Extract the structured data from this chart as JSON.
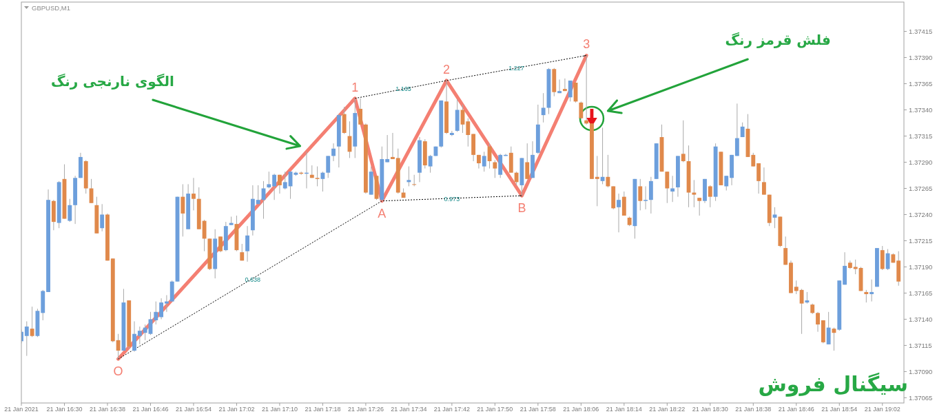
{
  "chart_data": {
    "type": "candlestick",
    "title": "GBPUSD,M1",
    "x": [
      "2021-01-21T16:22",
      "2021-01-21T16:23",
      "2021-01-21T16:24",
      "2021-01-21T16:25",
      "2021-01-21T16:26",
      "2021-01-21T16:27",
      "2021-01-21T16:28",
      "2021-01-21T16:29",
      "2021-01-21T16:30",
      "2021-01-21T16:31",
      "2021-01-21T16:32",
      "2021-01-21T16:33",
      "2021-01-21T16:34",
      "2021-01-21T16:35",
      "2021-01-21T16:36",
      "2021-01-21T16:37",
      "2021-01-21T16:38",
      "2021-01-21T16:39",
      "2021-01-21T16:40",
      "2021-01-21T16:41",
      "2021-01-21T16:42",
      "2021-01-21T16:43",
      "2021-01-21T16:44",
      "2021-01-21T16:45",
      "2021-01-21T16:46",
      "2021-01-21T16:47",
      "2021-01-21T16:48",
      "2021-01-21T16:49",
      "2021-01-21T16:50",
      "2021-01-21T16:51",
      "2021-01-21T16:52",
      "2021-01-21T16:53",
      "2021-01-21T16:54",
      "2021-01-21T16:55",
      "2021-01-21T16:56",
      "2021-01-21T16:57",
      "2021-01-21T16:58",
      "2021-01-21T16:59",
      "2021-01-21T17:00",
      "2021-01-21T17:01",
      "2021-01-21T17:02",
      "2021-01-21T17:03",
      "2021-01-21T17:04",
      "2021-01-21T17:05",
      "2021-01-21T17:06",
      "2021-01-21T17:07",
      "2021-01-21T17:08",
      "2021-01-21T17:09",
      "2021-01-21T17:10",
      "2021-01-21T17:11",
      "2021-01-21T17:12",
      "2021-01-21T17:13",
      "2021-01-21T17:14",
      "2021-01-21T17:15",
      "2021-01-21T17:16",
      "2021-01-21T17:17",
      "2021-01-21T17:18",
      "2021-01-21T17:19",
      "2021-01-21T17:20",
      "2021-01-21T17:21",
      "2021-01-21T17:22",
      "2021-01-21T17:23",
      "2021-01-21T17:24",
      "2021-01-21T17:25",
      "2021-01-21T17:26",
      "2021-01-21T17:27",
      "2021-01-21T17:28",
      "2021-01-21T17:29",
      "2021-01-21T17:30",
      "2021-01-21T17:31",
      "2021-01-21T17:32",
      "2021-01-21T17:33",
      "2021-01-21T17:34",
      "2021-01-21T17:35",
      "2021-01-21T17:36",
      "2021-01-21T17:37",
      "2021-01-21T17:38",
      "2021-01-21T17:39",
      "2021-01-21T17:40",
      "2021-01-21T17:41",
      "2021-01-21T17:42",
      "2021-01-21T17:43",
      "2021-01-21T17:44",
      "2021-01-21T17:45",
      "2021-01-21T17:46",
      "2021-01-21T17:47",
      "2021-01-21T17:48",
      "2021-01-21T17:49",
      "2021-01-21T17:50",
      "2021-01-21T17:51",
      "2021-01-21T17:52",
      "2021-01-21T17:53",
      "2021-01-21T17:54",
      "2021-01-21T17:55",
      "2021-01-21T17:56",
      "2021-01-21T17:57",
      "2021-01-21T17:58",
      "2021-01-21T17:59",
      "2021-01-21T18:00",
      "2021-01-21T18:01",
      "2021-01-21T18:02",
      "2021-01-21T18:03",
      "2021-01-21T18:04",
      "2021-01-21T18:05",
      "2021-01-21T18:06",
      "2021-01-21T18:07",
      "2021-01-21T18:08",
      "2021-01-21T18:09",
      "2021-01-21T18:10",
      "2021-01-21T18:11",
      "2021-01-21T18:12",
      "2021-01-21T18:13",
      "2021-01-21T18:14",
      "2021-01-21T18:15",
      "2021-01-21T18:16",
      "2021-01-21T18:17",
      "2021-01-21T18:18",
      "2021-01-21T18:19",
      "2021-01-21T18:20",
      "2021-01-21T18:21",
      "2021-01-21T18:22",
      "2021-01-21T18:23",
      "2021-01-21T18:24",
      "2021-01-21T18:25",
      "2021-01-21T18:26",
      "2021-01-21T18:27",
      "2021-01-21T18:28",
      "2021-01-21T18:29",
      "2021-01-21T18:30",
      "2021-01-21T18:31",
      "2021-01-21T18:32",
      "2021-01-21T18:33",
      "2021-01-21T18:34",
      "2021-01-21T18:35",
      "2021-01-21T18:36",
      "2021-01-21T18:37",
      "2021-01-21T18:38",
      "2021-01-21T18:39",
      "2021-01-21T18:40",
      "2021-01-21T18:41",
      "2021-01-21T18:42",
      "2021-01-21T18:43",
      "2021-01-21T18:44",
      "2021-01-21T18:45",
      "2021-01-21T18:46",
      "2021-01-21T18:47",
      "2021-01-21T18:48",
      "2021-01-21T18:49",
      "2021-01-21T18:50",
      "2021-01-21T18:51",
      "2021-01-21T18:52",
      "2021-01-21T18:53",
      "2021-01-21T18:54",
      "2021-01-21T18:55",
      "2021-01-21T18:56",
      "2021-01-21T18:57",
      "2021-01-21T18:58",
      "2021-01-21T18:59",
      "2021-01-21T19:00",
      "2021-01-21T19:01",
      "2021-01-21T19:02",
      "2021-01-21T19:03",
      "2021-01-21T19:04",
      "2021-01-21T19:05"
    ],
    "ohlc": [
      [
        1.37119,
        1.3713,
        1.37117,
        1.37128
      ],
      [
        1.37124,
        1.37138,
        1.37105,
        1.37133
      ],
      [
        1.37131,
        1.37152,
        1.37123,
        1.37124
      ],
      [
        1.37124,
        1.3715,
        1.37123,
        1.37148
      ],
      [
        1.37146,
        1.37168,
        1.37139,
        1.37167
      ],
      [
        1.37166,
        1.37264,
        1.37166,
        1.37254
      ],
      [
        1.37253,
        1.37254,
        1.37225,
        1.37233
      ],
      [
        1.37232,
        1.37272,
        1.37227,
        1.37271
      ],
      [
        1.37274,
        1.37288,
        1.37236,
        1.37236
      ],
      [
        1.37234,
        1.37255,
        1.37233,
        1.37249
      ],
      [
        1.37249,
        1.37277,
        1.37231,
        1.37275
      ],
      [
        1.37275,
        1.37299,
        1.37275,
        1.37295
      ],
      [
        1.37291,
        1.37292,
        1.3726,
        1.37265
      ],
      [
        1.37265,
        1.37274,
        1.37251,
        1.37251
      ],
      [
        1.37249,
        1.37257,
        1.37222,
        1.37222
      ],
      [
        1.37227,
        1.3725,
        1.37224,
        1.3724
      ],
      [
        1.3724,
        1.37241,
        1.37196,
        1.37196
      ],
      [
        1.37198,
        1.37198,
        1.37118,
        1.37119
      ],
      [
        1.3712,
        1.37126,
        1.37102,
        1.3711
      ],
      [
        1.3711,
        1.37169,
        1.3711,
        1.37156
      ],
      [
        1.37158,
        1.37158,
        1.37112,
        1.37114
      ],
      [
        1.3711,
        1.37138,
        1.37109,
        1.37126
      ],
      [
        1.37124,
        1.37133,
        1.37116,
        1.37129
      ],
      [
        1.37127,
        1.37135,
        1.3712,
        1.37132
      ],
      [
        1.37126,
        1.37147,
        1.37125,
        1.3714
      ],
      [
        1.37139,
        1.37157,
        1.37135,
        1.37147
      ],
      [
        1.37142,
        1.3716,
        1.3714,
        1.37156
      ],
      [
        1.37155,
        1.37163,
        1.37147,
        1.37157
      ],
      [
        1.37157,
        1.37177,
        1.37157,
        1.37176
      ],
      [
        1.37176,
        1.37257,
        1.37176,
        1.37257
      ],
      [
        1.37257,
        1.37269,
        1.37219,
        1.37241
      ],
      [
        1.37226,
        1.37269,
        1.37226,
        1.3726
      ],
      [
        1.3726,
        1.37275,
        1.37244,
        1.37255
      ],
      [
        1.37255,
        1.37266,
        1.37226,
        1.37226
      ],
      [
        1.37234,
        1.37235,
        1.37205,
        1.37217
      ],
      [
        1.37217,
        1.37217,
        1.37187,
        1.37188
      ],
      [
        1.37188,
        1.37226,
        1.37179,
        1.37217
      ],
      [
        1.37219,
        1.37219,
        1.37204,
        1.37205
      ],
      [
        1.37206,
        1.37233,
        1.37205,
        1.37229
      ],
      [
        1.3723,
        1.37238,
        1.3723,
        1.37232
      ],
      [
        1.37231,
        1.37239,
        1.37205,
        1.37206
      ],
      [
        1.37204,
        1.37212,
        1.37196,
        1.37196
      ],
      [
        1.37205,
        1.37229,
        1.37195,
        1.3722
      ],
      [
        1.37225,
        1.37268,
        1.3722,
        1.37255
      ],
      [
        1.3725,
        1.37268,
        1.3725,
        1.37254
      ],
      [
        1.37254,
        1.37272,
        1.37236,
        1.37265
      ],
      [
        1.37266,
        1.37281,
        1.37265,
        1.37269
      ],
      [
        1.37267,
        1.37279,
        1.37254,
        1.37278
      ],
      [
        1.37278,
        1.37278,
        1.3726,
        1.37268
      ],
      [
        1.37265,
        1.37281,
        1.37264,
        1.37271
      ],
      [
        1.37267,
        1.37281,
        1.37255,
        1.37281
      ],
      [
        1.37278,
        1.37281,
        1.37277,
        1.3728
      ],
      [
        1.3728,
        1.37281,
        1.37278,
        1.37279
      ],
      [
        1.37279,
        1.373,
        1.37265,
        1.3728
      ],
      [
        1.37278,
        1.37287,
        1.37275,
        1.37275
      ],
      [
        1.37275,
        1.37286,
        1.37267,
        1.37274
      ],
      [
        1.37274,
        1.37281,
        1.37262,
        1.3728
      ],
      [
        1.3728,
        1.37296,
        1.37275,
        1.37296
      ],
      [
        1.37296,
        1.37308,
        1.37291,
        1.37303
      ],
      [
        1.37305,
        1.37336,
        1.37285,
        1.37335
      ],
      [
        1.37336,
        1.37343,
        1.37317,
        1.37318
      ],
      [
        1.37315,
        1.37329,
        1.37294,
        1.373
      ],
      [
        1.37305,
        1.37351,
        1.37294,
        1.37337
      ],
      [
        1.37341,
        1.37351,
        1.37326,
        1.37326
      ],
      [
        1.37326,
        1.37327,
        1.3726,
        1.37261
      ],
      [
        1.37259,
        1.37286,
        1.37259,
        1.37281
      ],
      [
        1.37277,
        1.37277,
        1.37254,
        1.37255
      ],
      [
        1.37254,
        1.37305,
        1.37253,
        1.37293
      ],
      [
        1.3729,
        1.37316,
        1.3729,
        1.37293
      ],
      [
        1.37295,
        1.37318,
        1.37293,
        1.37293
      ],
      [
        1.37294,
        1.37303,
        1.3726,
        1.37261
      ],
      [
        1.37261,
        1.37265,
        1.37256,
        1.37256
      ],
      [
        1.37271,
        1.37286,
        1.37267,
        1.37273
      ],
      [
        1.37269,
        1.37278,
        1.37267,
        1.37269
      ],
      [
        1.3728,
        1.37314,
        1.37271,
        1.37311
      ],
      [
        1.3731,
        1.37312,
        1.37284,
        1.37287
      ],
      [
        1.37286,
        1.37297,
        1.3728,
        1.37296
      ],
      [
        1.37296,
        1.37305,
        1.37296,
        1.37305
      ],
      [
        1.37305,
        1.37349,
        1.37304,
        1.37349
      ],
      [
        1.37348,
        1.37368,
        1.37317,
        1.37318
      ],
      [
        1.37316,
        1.3732,
        1.37315,
        1.37318
      ],
      [
        1.3732,
        1.3735,
        1.37319,
        1.3734
      ],
      [
        1.3734,
        1.37345,
        1.37318,
        1.37326
      ],
      [
        1.37329,
        1.37332,
        1.37305,
        1.37316
      ],
      [
        1.37317,
        1.37317,
        1.37291,
        1.37297
      ],
      [
        1.37297,
        1.37297,
        1.37284,
        1.37289
      ],
      [
        1.37286,
        1.373,
        1.37281,
        1.37296
      ],
      [
        1.37305,
        1.37308,
        1.37284,
        1.37291
      ],
      [
        1.3729,
        1.37292,
        1.37275,
        1.37284
      ],
      [
        1.37278,
        1.37298,
        1.37275,
        1.37297
      ],
      [
        1.37296,
        1.37298,
        1.37296,
        1.37297
      ],
      [
        1.37299,
        1.37305,
        1.3728,
        1.3728
      ],
      [
        1.3728,
        1.37281,
        1.37268,
        1.37271
      ],
      [
        1.37268,
        1.37294,
        1.37258,
        1.37294
      ],
      [
        1.3729,
        1.37308,
        1.37274,
        1.37274
      ],
      [
        1.37275,
        1.3731,
        1.37275,
        1.37297
      ],
      [
        1.37299,
        1.37345,
        1.37298,
        1.37326
      ],
      [
        1.37335,
        1.37356,
        1.37328,
        1.37342
      ],
      [
        1.37342,
        1.3738,
        1.37336,
        1.37379
      ],
      [
        1.37379,
        1.3738,
        1.37353,
        1.37357
      ],
      [
        1.37356,
        1.37369,
        1.37356,
        1.37358
      ],
      [
        1.3736,
        1.3737,
        1.37358,
        1.37358
      ],
      [
        1.37352,
        1.37368,
        1.37348,
        1.37368
      ],
      [
        1.37366,
        1.37366,
        1.37347,
        1.37348
      ],
      [
        1.37347,
        1.37348,
        1.37331,
        1.37332
      ],
      [
        1.3733,
        1.37392,
        1.37326,
        1.37327
      ],
      [
        1.37327,
        1.37327,
        1.37274,
        1.37274
      ],
      [
        1.37276,
        1.37296,
        1.37248,
        1.37274
      ],
      [
        1.37272,
        1.37323,
        1.37269,
        1.37276
      ],
      [
        1.37276,
        1.37297,
        1.37266,
        1.37267
      ],
      [
        1.37267,
        1.37267,
        1.37245,
        1.37246
      ],
      [
        1.37247,
        1.3726,
        1.37223,
        1.37254
      ],
      [
        1.37257,
        1.37262,
        1.37239,
        1.37239
      ],
      [
        1.37237,
        1.37238,
        1.37229,
        1.3723
      ],
      [
        1.37229,
        1.37274,
        1.37217,
        1.37274
      ],
      [
        1.37267,
        1.37274,
        1.37244,
        1.37253
      ],
      [
        1.37253,
        1.37267,
        1.37245,
        1.37254
      ],
      [
        1.37254,
        1.37276,
        1.37241,
        1.37272
      ],
      [
        1.37274,
        1.37308,
        1.37274,
        1.37308
      ],
      [
        1.37314,
        1.37326,
        1.37281,
        1.37281
      ],
      [
        1.37281,
        1.37281,
        1.37251,
        1.37265
      ],
      [
        1.37262,
        1.37277,
        1.37252,
        1.37265
      ],
      [
        1.37266,
        1.37296,
        1.37257,
        1.37296
      ],
      [
        1.37298,
        1.3733,
        1.3729,
        1.37291
      ],
      [
        1.37291,
        1.37306,
        1.37247,
        1.37261
      ],
      [
        1.37261,
        1.37273,
        1.37247,
        1.37259
      ],
      [
        1.37256,
        1.37256,
        1.37239,
        1.37253
      ],
      [
        1.37253,
        1.37274,
        1.37251,
        1.37274
      ],
      [
        1.37267,
        1.37268,
        1.37247,
        1.37257
      ],
      [
        1.37257,
        1.37308,
        1.37253,
        1.37305
      ],
      [
        1.373,
        1.373,
        1.37268,
        1.37268
      ],
      [
        1.37267,
        1.37277,
        1.37263,
        1.37277
      ],
      [
        1.37275,
        1.37297,
        1.37268,
        1.37297
      ],
      [
        1.37296,
        1.37346,
        1.37296,
        1.37313
      ],
      [
        1.37314,
        1.37328,
        1.37314,
        1.37324
      ],
      [
        1.37322,
        1.37336,
        1.37295,
        1.37295
      ],
      [
        1.37297,
        1.37299,
        1.37286,
        1.37286
      ],
      [
        1.37289,
        1.37289,
        1.3726,
        1.37272
      ],
      [
        1.37271,
        1.37285,
        1.37259,
        1.37259
      ],
      [
        1.37259,
        1.37259,
        1.37229,
        1.37232
      ],
      [
        1.37237,
        1.37247,
        1.37227,
        1.3724
      ],
      [
        1.37238,
        1.37238,
        1.37209,
        1.3721
      ],
      [
        1.37208,
        1.37219,
        1.37192,
        1.37192
      ],
      [
        1.37194,
        1.37196,
        1.37165,
        1.37165
      ],
      [
        1.37171,
        1.37177,
        1.37164,
        1.37167
      ],
      [
        1.37168,
        1.37169,
        1.37126,
        1.37155
      ],
      [
        1.37156,
        1.37166,
        1.37155,
        1.37158
      ],
      [
        1.37154,
        1.37155,
        1.37145,
        1.37146
      ],
      [
        1.37146,
        1.37147,
        1.37128,
        1.37135
      ],
      [
        1.37139,
        1.37139,
        1.37117,
        1.37118
      ],
      [
        1.37116,
        1.37147,
        1.37116,
        1.37132
      ],
      [
        1.37131,
        1.37132,
        1.3711,
        1.37127
      ],
      [
        1.3713,
        1.37177,
        1.37129,
        1.37177
      ],
      [
        1.37173,
        1.37204,
        1.37173,
        1.37191
      ],
      [
        1.37194,
        1.37196,
        1.37188,
        1.37189
      ],
      [
        1.3719,
        1.37197,
        1.37183,
        1.37188
      ],
      [
        1.37189,
        1.3719,
        1.37167,
        1.37167
      ],
      [
        1.37166,
        1.37168,
        1.37156,
        1.37164
      ],
      [
        1.37164,
        1.37178,
        1.37157,
        1.37166
      ],
      [
        1.37171,
        1.37208,
        1.37171,
        1.37208
      ],
      [
        1.37206,
        1.3721,
        1.37187,
        1.37188
      ],
      [
        1.37188,
        1.37207,
        1.37187,
        1.37203
      ],
      [
        1.37202,
        1.37203,
        1.37194,
        1.37194
      ],
      [
        1.37196,
        1.37205,
        1.37172,
        1.37176
      ]
    ],
    "colors": [
      "#6d9fdc",
      "#6d9fdc",
      "#e0894b",
      "#6d9fdc",
      "#6d9fdc",
      "#6d9fdc",
      "#e0894b",
      "#6d9fdc",
      "#e0894b",
      "#6d9fdc",
      "#6d9fdc",
      "#6d9fdc",
      "#e0894b",
      "#e0894b",
      "#e0894b",
      "#6d9fdc",
      "#e0894b",
      "#e0894b",
      "#e0894b",
      "#6d9fdc",
      "#e0894b",
      "#6d9fdc",
      "#6d9fdc",
      "#6d9fdc",
      "#6d9fdc",
      "#6d9fdc",
      "#6d9fdc",
      "#6d9fdc",
      "#6d9fdc",
      "#6d9fdc",
      "#e0894b",
      "#6d9fdc",
      "#e0894b",
      "#e0894b",
      "#e0894b",
      "#e0894b",
      "#6d9fdc",
      "#e0894b",
      "#6d9fdc",
      "#6d9fdc",
      "#e0894b",
      "#e0894b",
      "#6d9fdc",
      "#6d9fdc",
      "#6d9fdc",
      "#6d9fdc",
      "#6d9fdc",
      "#6d9fdc",
      "#e0894b",
      "#6d9fdc",
      "#6d9fdc",
      "#6d9fdc",
      "#e0894b",
      "#6d9fdc",
      "#e0894b",
      "#e0894b",
      "#6d9fdc",
      "#6d9fdc",
      "#6d9fdc",
      "#6d9fdc",
      "#e0894b",
      "#e0894b",
      "#6d9fdc",
      "#e0894b",
      "#e0894b",
      "#6d9fdc",
      "#e0894b",
      "#6d9fdc",
      "#6d9fdc",
      "#e0894b",
      "#e0894b",
      "#e0894b",
      "#6d9fdc",
      "#e0894b",
      "#6d9fdc",
      "#e0894b",
      "#6d9fdc",
      "#6d9fdc",
      "#6d9fdc",
      "#e0894b",
      "#6d9fdc",
      "#6d9fdc",
      "#e0894b",
      "#e0894b",
      "#e0894b",
      "#e0894b",
      "#6d9fdc",
      "#e0894b",
      "#e0894b",
      "#6d9fdc",
      "#6d9fdc",
      "#e0894b",
      "#e0894b",
      "#6d9fdc",
      "#e0894b",
      "#6d9fdc",
      "#6d9fdc",
      "#6d9fdc",
      "#6d9fdc",
      "#e0894b",
      "#6d9fdc",
      "#e0894b",
      "#6d9fdc",
      "#e0894b",
      "#e0894b",
      "#e0894b",
      "#e0894b",
      "#e0894b",
      "#6d9fdc",
      "#e0894b",
      "#e0894b",
      "#6d9fdc",
      "#e0894b",
      "#e0894b",
      "#6d9fdc",
      "#e0894b",
      "#6d9fdc",
      "#6d9fdc",
      "#6d9fdc",
      "#e0894b",
      "#e0894b",
      "#6d9fdc",
      "#6d9fdc",
      "#e0894b",
      "#e0894b",
      "#e0894b",
      "#e0894b",
      "#6d9fdc",
      "#e0894b",
      "#6d9fdc",
      "#e0894b",
      "#6d9fdc",
      "#6d9fdc",
      "#6d9fdc",
      "#6d9fdc",
      "#e0894b",
      "#e0894b",
      "#e0894b",
      "#e0894b",
      "#e0894b",
      "#6d9fdc",
      "#e0894b",
      "#e0894b",
      "#e0894b",
      "#e0894b",
      "#e0894b",
      "#6d9fdc",
      "#e0894b",
      "#e0894b",
      "#e0894b",
      "#6d9fdc",
      "#e0894b",
      "#6d9fdc",
      "#6d9fdc",
      "#e0894b",
      "#e0894b",
      "#e0894b",
      "#e0894b",
      "#6d9fdc",
      "#6d9fdc",
      "#e0894b",
      "#6d9fdc",
      "#e0894b",
      "#e0894b"
    ],
    "series": [
      {
        "type": "line",
        "color": "#f47f72",
        "x": [
          "2021-01-21T16:40",
          "2021-01-21T17:24",
          "2021-01-21T17:29",
          "2021-01-21T17:41",
          "2021-01-21T17:55",
          "2021-01-21T18:07"
        ],
        "values": [
          1.37102,
          1.37351,
          1.37253,
          1.37368,
          1.37258,
          1.37392
        ]
      },
      {
        "type": "line",
        "color": "#000000",
        "line_style": "dotted",
        "x": [
          "2021-01-21T16:40",
          "2021-01-21T17:29",
          "2021-01-21T17:55"
        ],
        "values": [
          1.37102,
          1.37253,
          1.37258
        ]
      },
      {
        "type": "line",
        "color": "#000000",
        "line_style": "dotted",
        "x": [
          "2021-01-21T17:24",
          "2021-01-21T17:41",
          "2021-01-21T18:07"
        ],
        "values": [
          1.37351,
          1.37368,
          1.37392
        ]
      }
    ],
    "xlim": [
      "2021-01-21T16:22",
      "2021-01-21T19:06"
    ],
    "xticks": [
      {
        "value": "2021-01-21T16:22",
        "label": "21 Jan 2021"
      },
      {
        "value": "2021-01-21T16:30",
        "label": "21 Jan 16:30"
      },
      {
        "value": "2021-01-21T16:38",
        "label": "21 Jan 16:38"
      },
      {
        "value": "2021-01-21T16:46",
        "label": "21 Jan 16:46"
      },
      {
        "value": "2021-01-21T16:54",
        "label": "21 Jan 16:54"
      },
      {
        "value": "2021-01-21T17:02",
        "label": "21 Jan 17:02"
      },
      {
        "value": "2021-01-21T17:10",
        "label": "21 Jan 17:10"
      },
      {
        "value": "2021-01-21T17:18",
        "label": "21 Jan 17:18"
      },
      {
        "value": "2021-01-21T17:26",
        "label": "21 Jan 17:26"
      },
      {
        "value": "2021-01-21T17:34",
        "label": "21 Jan 17:34"
      },
      {
        "value": "2021-01-21T17:42",
        "label": "21 Jan 17:42"
      },
      {
        "value": "2021-01-21T17:50",
        "label": "21 Jan 17:50"
      },
      {
        "value": "2021-01-21T17:58",
        "label": "21 Jan 17:58"
      },
      {
        "value": "2021-01-21T18:06",
        "label": "21 Jan 18:06"
      },
      {
        "value": "2021-01-21T18:14",
        "label": "21 Jan 18:14"
      },
      {
        "value": "2021-01-21T18:22",
        "label": "21 Jan 18:22"
      },
      {
        "value": "2021-01-21T18:30",
        "label": "21 Jan 18:30"
      },
      {
        "value": "2021-01-21T18:38",
        "label": "21 Jan 18:38"
      },
      {
        "value": "2021-01-21T18:46",
        "label": "21 Jan 18:46"
      },
      {
        "value": "2021-01-21T18:54",
        "label": "21 Jan 18:54"
      },
      {
        "value": "2021-01-21T19:02",
        "label": "21 Jan 19:02"
      }
    ],
    "ylim": [
      1.3706,
      1.37443
    ],
    "yticks": [
      1.37415,
      {
        "value": 1.3739,
        "label": "1.37390"
      },
      1.37365,
      {
        "value": 1.3734,
        "label": "1.37340"
      },
      1.37315,
      {
        "value": 1.3729,
        "label": "1.37290"
      },
      1.37265,
      {
        "value": 1.3724,
        "label": "1.37240"
      },
      1.37215,
      {
        "value": 1.3719,
        "label": "1.37190"
      },
      1.37165,
      {
        "value": 1.3714,
        "label": "1.37140"
      },
      1.37115,
      {
        "value": 1.3709,
        "label": "1.37090"
      },
      1.37065
    ],
    "annotations": [
      "الگوی نارنجی رنگ",
      "فلش قرمز رنگ",
      "سیگنال فروش",
      {
        "text": "O",
        "x": "2021-01-21T16:40",
        "y": 1.37102
      },
      {
        "text": "1",
        "x": "2021-01-21T17:24",
        "y": 1.37351
      },
      {
        "text": "A",
        "x": "2021-01-21T17:29",
        "y": 1.37253
      },
      {
        "text": "2",
        "x": "2021-01-21T17:41",
        "y": 1.37368
      },
      {
        "text": "B",
        "x": "2021-01-21T17:55",
        "y": 1.37258
      },
      {
        "text": "3",
        "x": "2021-01-21T18:07",
        "y": 1.37392
      },
      {
        "text": "0.638",
        "x": "2021-01-21T17:05",
        "y": 1.37178
      },
      {
        "text": "1.165",
        "x": "2021-01-21T17:33",
        "y": 1.3736
      },
      {
        "text": "0.973",
        "x": "2021-01-21T17:42",
        "y": 1.37255
      },
      {
        "text": "1.227",
        "x": "2021-01-21T17:54",
        "y": 1.3738
      }
    ]
  }
}
